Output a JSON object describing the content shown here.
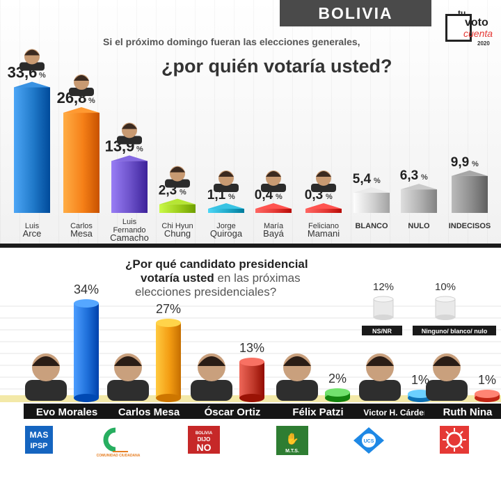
{
  "header": {
    "country": "BOLIVIA"
  },
  "logo": {
    "line1": "tu",
    "line2": "voto",
    "line3": "cuenta",
    "year": "2020"
  },
  "question_top": {
    "line1": "Si el próximo domingo fueran las elecciones generales,",
    "line2": "¿por quién votaría usted?"
  },
  "question_bottom": {
    "line1": "¿Por qué candidato presidencial",
    "line2_bold": "votaría usted",
    "line2_rest": " en las próximas",
    "line3": "elecciones presidenciales?"
  },
  "chart_data": [
    {
      "type": "bar",
      "categories": [
        "Luis Arce",
        "Carlos Mesa",
        "Luis Fernando Camacho",
        "Chi Hyun Chung",
        "Jorge Quiroga",
        "María Bayá",
        "Feliciano Mamani",
        "BLANCO",
        "NULO",
        "INDECISOS"
      ],
      "values": [
        33.6,
        26.8,
        13.9,
        2.3,
        1.1,
        0.4,
        0.3,
        5.4,
        6.3,
        9.9
      ],
      "value_labels": [
        "33,6",
        "26,8",
        "13,9",
        "2,3",
        "1,1",
        "0,4",
        "0,3",
        "5,4",
        "6,3",
        "9,9"
      ],
      "unit": "%",
      "title": "¿por quién votaría usted?",
      "colors": [
        "#1f78c8",
        "#f57f17",
        "#6a4fc7",
        "#9ccc1a",
        "#1fa9c9",
        "#e53935",
        "#e53935",
        "#d0d0d0",
        "#b0b0b0",
        "#8d8d8d"
      ],
      "ylim": [
        0,
        35
      ]
    },
    {
      "type": "bar",
      "categories": [
        "Evo Morales",
        "Carlos Mesa",
        "Óscar Ortiz",
        "Félix Patzi",
        "Victor H. Cárdenas",
        "Ruth Nina"
      ],
      "values": [
        34,
        27,
        13,
        2,
        1,
        1
      ],
      "value_labels": [
        "34%",
        "27%",
        "13%",
        "2%",
        "1%",
        "1%"
      ],
      "parties": [
        "MAS IPSP",
        "COMUNIDAD CIUDADANA",
        "BOLIVIA DIJO NO",
        "M.T.S.",
        "UCS",
        ""
      ],
      "colors": [
        "#1e6fd9",
        "#f39c12",
        "#c0392b",
        "#3aaa35",
        "#3498db",
        "#e74c3c"
      ],
      "extras": [
        {
          "label": "NS/NR",
          "value_label": "12%"
        },
        {
          "label": "Ninguno/ blanco/ nulo",
          "value_label": "10%"
        }
      ],
      "ylim": [
        0,
        35
      ]
    }
  ]
}
